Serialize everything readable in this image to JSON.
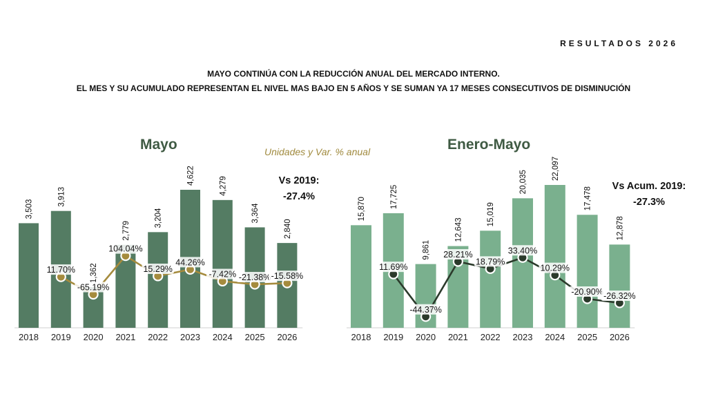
{
  "header": {
    "report_label": "RESULTADOS 2026",
    "headline_line1": "MAYO CONTINÚA CON LA REDUCCIÓN ANUAL DEL MERCADO INTERNO.",
    "headline_line2": "EL MES Y SU ACUMULADO REPRESENTAN EL NIVEL MAS BAJO EN 5 AÑOS Y SE SUMAN YA 17 MESES CONSECUTIVOS DE DISMINUCIÓN"
  },
  "units_note": "Unidades y Var. % anual",
  "colors": {
    "mayo_bar": "#547c63",
    "mayo_line": "#a58b3d",
    "enero_bar": "#7ab08e",
    "enero_line": "#2b3a2b",
    "title": "#3f5a43"
  },
  "chart_data": [
    {
      "type": "bar",
      "title": "Mayo",
      "categories": [
        "2018",
        "2019",
        "2020",
        "2021",
        "2022",
        "2023",
        "2024",
        "2025",
        "2026"
      ],
      "values": [
        3503,
        3913,
        1362,
        2779,
        3204,
        4622,
        4279,
        3364,
        2840
      ],
      "value_labels": [
        "3,503",
        "3,913",
        "1,362",
        "2,779",
        "3,204",
        "4,622",
        "4,279",
        "3,364",
        "2,840"
      ],
      "line": {
        "values": [
          null,
          11.7,
          -65.19,
          104.04,
          15.29,
          44.26,
          -7.42,
          -21.38,
          -15.58
        ],
        "labels": [
          "",
          "11.70%",
          "-65.19%",
          "104.04%",
          "15.29%",
          "44.26%",
          "-7.42%",
          "-21.38%",
          "-15.58%"
        ]
      },
      "ylim": [
        0,
        4622
      ],
      "comparison": {
        "label": "Vs 2019:",
        "value": "-27.4%"
      }
    },
    {
      "type": "bar",
      "title": "Enero-Mayo",
      "categories": [
        "2018",
        "2019",
        "2020",
        "2021",
        "2022",
        "2023",
        "2024",
        "2025",
        "2026"
      ],
      "values": [
        15870,
        17725,
        9861,
        12643,
        15019,
        20035,
        22097,
        17478,
        12878
      ],
      "value_labels": [
        "15,870",
        "17,725",
        "9,861",
        "12,643",
        "15,019",
        "20,035",
        "22,097",
        "17,478",
        "12,878"
      ],
      "line": {
        "values": [
          null,
          11.69,
          -44.37,
          28.21,
          18.79,
          33.4,
          10.29,
          -20.9,
          -26.32
        ],
        "labels": [
          "",
          "11.69%",
          "-44.37%",
          "28.21%",
          "18.79%",
          "33.40%",
          "10.29%",
          "-20.90%",
          "-26.32%"
        ]
      },
      "ylim": [
        0,
        22097
      ],
      "comparison": {
        "label": "Vs Acum. 2019:",
        "value": "-27.3%"
      }
    }
  ]
}
